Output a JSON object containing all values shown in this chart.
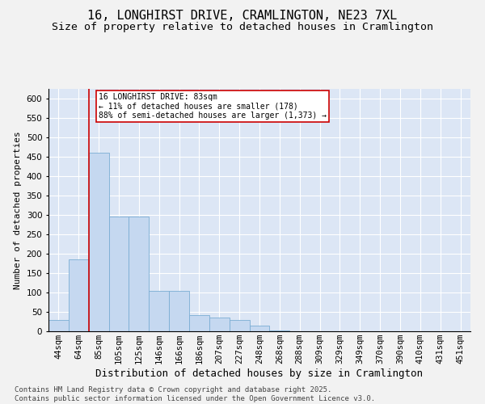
{
  "title": "16, LONGHIRST DRIVE, CRAMLINGTON, NE23 7XL",
  "subtitle": "Size of property relative to detached houses in Cramlington",
  "xlabel": "Distribution of detached houses by size in Cramlington",
  "ylabel": "Number of detached properties",
  "categories": [
    "44sqm",
    "64sqm",
    "85sqm",
    "105sqm",
    "125sqm",
    "146sqm",
    "166sqm",
    "186sqm",
    "207sqm",
    "227sqm",
    "248sqm",
    "268sqm",
    "288sqm",
    "309sqm",
    "329sqm",
    "349sqm",
    "370sqm",
    "390sqm",
    "410sqm",
    "431sqm",
    "451sqm"
  ],
  "bar_heights": [
    30,
    185,
    460,
    295,
    295,
    105,
    105,
    42,
    35,
    30,
    15,
    2,
    1,
    0,
    1,
    0,
    0,
    0,
    1,
    0,
    1
  ],
  "bar_color": "#c5d8f0",
  "bar_edge_color": "#7aadd4",
  "highlight_line_color": "#cc0000",
  "annotation_text": "16 LONGHIRST DRIVE: 83sqm\n← 11% of detached houses are smaller (178)\n88% of semi-detached houses are larger (1,373) →",
  "annotation_box_color": "#ffffff",
  "annotation_box_edge": "#cc0000",
  "ylim": [
    0,
    625
  ],
  "yticks": [
    0,
    50,
    100,
    150,
    200,
    250,
    300,
    350,
    400,
    450,
    500,
    550,
    600
  ],
  "background_color": "#dce6f5",
  "grid_color": "#ffffff",
  "footer": "Contains HM Land Registry data © Crown copyright and database right 2025.\nContains public sector information licensed under the Open Government Licence v3.0.",
  "title_fontsize": 11,
  "subtitle_fontsize": 9.5,
  "xlabel_fontsize": 9,
  "ylabel_fontsize": 8,
  "tick_fontsize": 7.5,
  "footer_fontsize": 6.5
}
